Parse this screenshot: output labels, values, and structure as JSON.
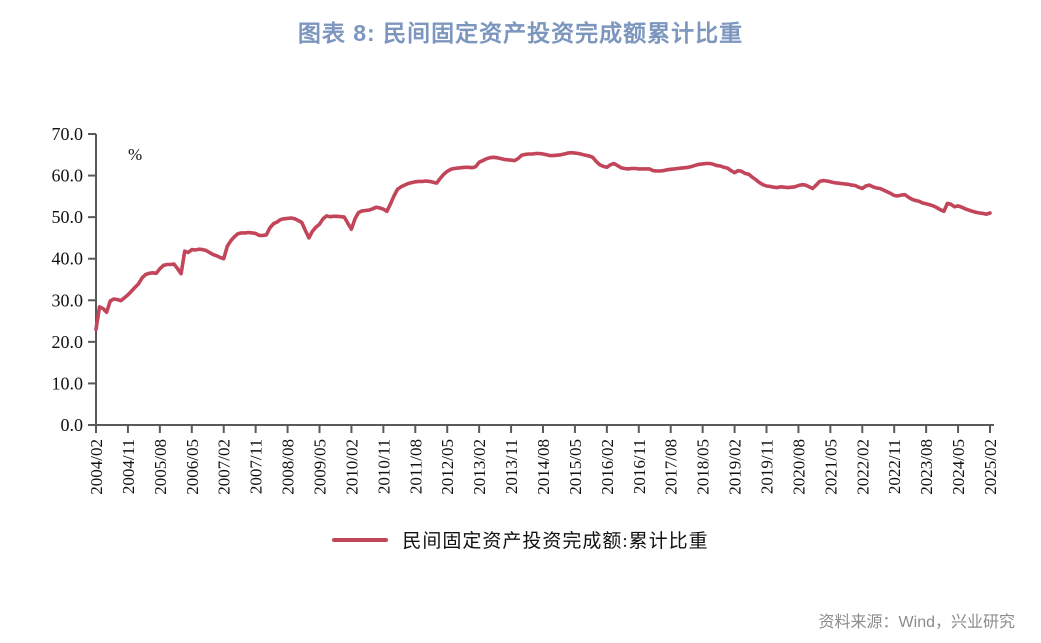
{
  "title": "图表  8: 民间固定资产投资完成额累计比重",
  "source": "资料来源：Wind，兴业研究",
  "legend": {
    "label": "民间固定资产投资完成额:累计比重"
  },
  "colors": {
    "line": "#C2455A",
    "title": "#7C96BE",
    "axis": "#595959",
    "tick_text": "#111111",
    "source_text": "#8C8C8C"
  },
  "chart_data": {
    "type": "line",
    "title": "图表  8: 民间固定资产投资完成额累计比重",
    "ylabel": "%",
    "ylim": [
      0,
      70
    ],
    "y_tick_step": 10,
    "y_tick_labels": [
      "0.0",
      "10.0",
      "20.0",
      "30.0",
      "40.0",
      "50.0",
      "60.0",
      "70.0"
    ],
    "grid": false,
    "legend_position": "bottom",
    "x_start": "2004/02",
    "x_end": "2025/02",
    "x_tick_every": 9,
    "x_tick_labels": [
      "2004/02",
      "2004/11",
      "2005/08",
      "2006/05",
      "2007/02",
      "2007/11",
      "2008/08",
      "2009/05",
      "2010/02",
      "2010/11",
      "2011/08",
      "2012/05",
      "2013/02",
      "2013/11",
      "2014/08",
      "2015/05",
      "2016/02",
      "2016/11",
      "2017/08",
      "2018/05",
      "2019/02",
      "2019/11",
      "2020/08",
      "2021/05",
      "2022/02",
      "2022/11",
      "2023/08",
      "2024/05",
      "2025/02"
    ],
    "series": [
      {
        "name": "民间固定资产投资完成额:累计比重",
        "unit": "%",
        "values": [
          23.0,
          28.4,
          28.0,
          27.1,
          29.8,
          30.3,
          30.2,
          29.9,
          30.6,
          31.3,
          32.2,
          33.1,
          34.0,
          35.4,
          36.2,
          36.5,
          36.6,
          36.5,
          37.6,
          38.4,
          38.6,
          38.6,
          38.7,
          37.6,
          36.4,
          41.8,
          41.5,
          42.2,
          42.1,
          42.3,
          42.2,
          42.0,
          41.5,
          41.0,
          40.7,
          40.3,
          40.0,
          43.0,
          44.3,
          45.3,
          46.0,
          46.2,
          46.2,
          46.3,
          46.2,
          46.1,
          45.6,
          45.6,
          45.7,
          47.4,
          48.4,
          48.8,
          49.4,
          49.6,
          49.7,
          49.8,
          49.6,
          49.2,
          48.7,
          46.8,
          45.0,
          46.6,
          47.6,
          48.3,
          49.6,
          50.3,
          50.1,
          50.2,
          50.2,
          50.1,
          50.0,
          48.5,
          47.1,
          49.6,
          51.1,
          51.5,
          51.6,
          51.7,
          52.0,
          52.4,
          52.2,
          51.9,
          51.4,
          53.2,
          55.1,
          56.7,
          57.3,
          57.7,
          58.1,
          58.3,
          58.5,
          58.6,
          58.6,
          58.7,
          58.6,
          58.4,
          58.2,
          59.3,
          60.3,
          61.0,
          61.5,
          61.7,
          61.8,
          61.9,
          62.0,
          62.0,
          61.9,
          62.1,
          63.2,
          63.6,
          64.0,
          64.3,
          64.4,
          64.3,
          64.1,
          63.9,
          63.8,
          63.7,
          63.6,
          64.1,
          64.9,
          65.1,
          65.2,
          65.2,
          65.3,
          65.3,
          65.2,
          65.0,
          64.8,
          64.8,
          64.9,
          65.0,
          65.2,
          65.4,
          65.5,
          65.4,
          65.3,
          65.1,
          64.9,
          64.7,
          64.4,
          63.4,
          62.6,
          62.2,
          62.0,
          62.6,
          62.9,
          62.4,
          61.9,
          61.7,
          61.6,
          61.7,
          61.7,
          61.6,
          61.6,
          61.6,
          61.6,
          61.2,
          61.1,
          61.1,
          61.2,
          61.4,
          61.5,
          61.6,
          61.7,
          61.8,
          61.9,
          62.0,
          62.2,
          62.5,
          62.7,
          62.8,
          62.9,
          62.9,
          62.7,
          62.4,
          62.3,
          62.0,
          61.8,
          61.2,
          60.7,
          61.2,
          61.0,
          60.5,
          60.3,
          59.6,
          59.0,
          58.3,
          57.8,
          57.5,
          57.4,
          57.2,
          57.1,
          57.3,
          57.2,
          57.1,
          57.2,
          57.3,
          57.6,
          57.8,
          57.7,
          57.3,
          56.9,
          57.7,
          58.6,
          58.8,
          58.7,
          58.5,
          58.3,
          58.2,
          58.1,
          58.0,
          57.9,
          57.7,
          57.6,
          57.2,
          56.9,
          57.5,
          57.7,
          57.3,
          57.0,
          56.9,
          56.5,
          56.1,
          55.7,
          55.2,
          55.1,
          55.3,
          55.4,
          54.8,
          54.3,
          54.0,
          53.8,
          53.4,
          53.2,
          53.0,
          52.7,
          52.3,
          51.8,
          51.4,
          53.3,
          53.1,
          52.5,
          52.7,
          52.4,
          52.0,
          51.7,
          51.4,
          51.2,
          51.0,
          50.9,
          50.7,
          51.0
        ]
      }
    ]
  }
}
